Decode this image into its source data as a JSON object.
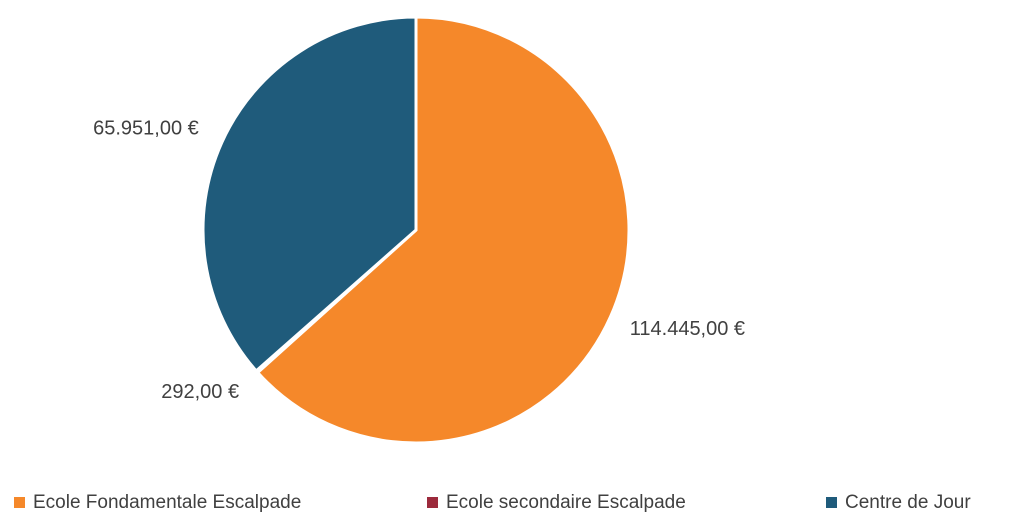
{
  "chart_data": {
    "type": "pie",
    "categories": [
      "Ecole Fondamentale Escalpade",
      "Ecole secondaire Escalpade",
      "Centre de Jour"
    ],
    "values": [
      114445,
      292,
      65951
    ],
    "value_labels": [
      "114.445,00 €",
      "292,00 €",
      "65.951,00 €"
    ],
    "colors": [
      "#f5882a",
      "#9c2a3c",
      "#1f5b7b"
    ],
    "legend": "bottom"
  }
}
